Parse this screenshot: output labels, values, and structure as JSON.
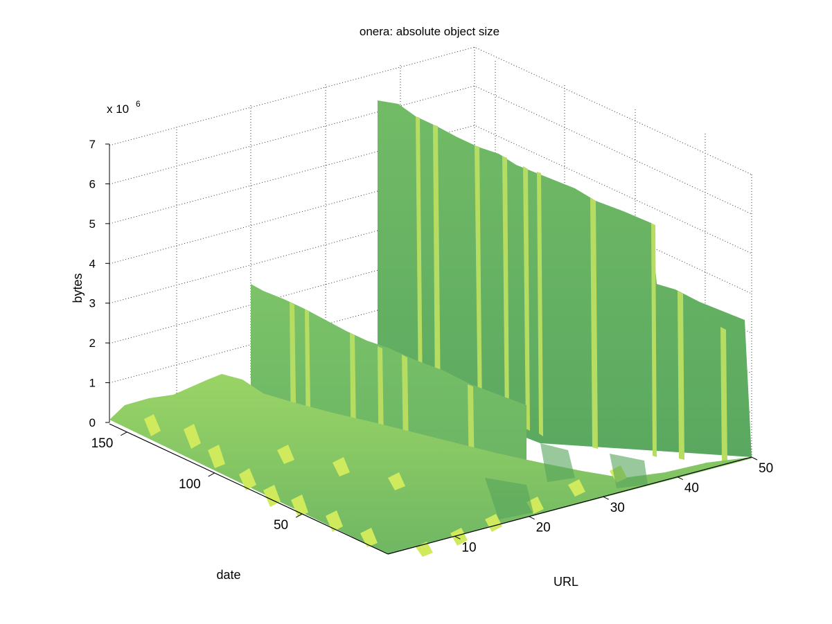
{
  "chart_data": {
    "type": "surface",
    "title": "onera: absolute object size",
    "xlabel": "URL",
    "ylabel": "date",
    "zlabel": "bytes",
    "z_multiplier": "x 10",
    "z_multiplier_exp": "6",
    "xlim": [
      1,
      50
    ],
    "ylim": [
      1,
      160
    ],
    "zlim": [
      0,
      7
    ],
    "x_ticks": [
      10,
      20,
      30,
      40,
      50
    ],
    "y_ticks": [
      50,
      100,
      150
    ],
    "z_ticks": [
      0,
      1,
      2,
      3,
      4,
      5,
      6,
      7
    ],
    "grid": true,
    "colormap": [
      "#5aa860",
      "#6cb865",
      "#8ccc64",
      "#c8e65a"
    ],
    "series": [
      {
        "name": "",
        "description_points": [
          {
            "url": 1,
            "date": 160,
            "value": 0.05
          },
          {
            "url": 5,
            "date": 160,
            "value": 0.35
          },
          {
            "url": 10,
            "date": 160,
            "value": 0.4
          },
          {
            "url": 14,
            "date": 160,
            "value": 0.9
          },
          {
            "url": 18,
            "date": 160,
            "value": 0.5
          },
          {
            "url": 20,
            "date": 160,
            "value": 0.55
          },
          {
            "url": 22,
            "date": 160,
            "value": 0.5
          },
          {
            "url": 24,
            "date": 160,
            "value": 0.7
          },
          {
            "url": 26,
            "date": 160,
            "value": 0.4
          },
          {
            "url": 28,
            "date": 160,
            "value": 0.6
          },
          {
            "url": 30,
            "date": 160,
            "value": 0.35
          },
          {
            "url": 33,
            "date": 160,
            "value": 0.3
          },
          {
            "url": 36,
            "date": 160,
            "value": 0.25
          },
          {
            "url": 40,
            "date": 160,
            "value": 0.2
          },
          {
            "url": 45,
            "date": 160,
            "value": 0.2
          },
          {
            "url": 50,
            "date": 160,
            "value": 0.15
          }
        ]
      }
    ],
    "ridges": [
      {
        "date_from": 1,
        "date_to": 160,
        "url_from": 1,
        "url_to": 50,
        "value": 0.4
      },
      {
        "date_from": 60,
        "date_to": 160,
        "url_from": 11,
        "url_to": 50,
        "value": 3.3
      },
      {
        "date_from": 115,
        "date_to": 160,
        "url_from": 18,
        "url_to": 50,
        "value": 6.6
      }
    ]
  }
}
